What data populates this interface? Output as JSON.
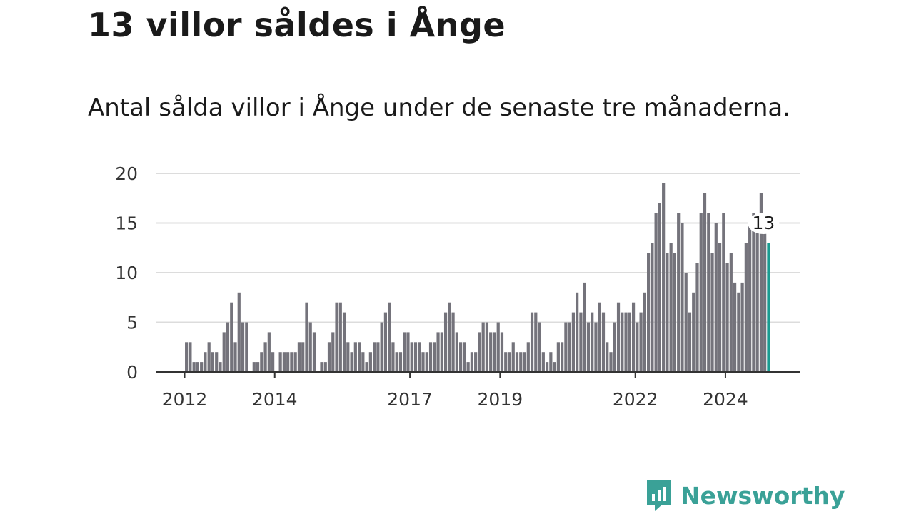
{
  "header": {
    "title": "13 villor såldes i Ånge",
    "subtitle": "Antal sålda villor i Ånge under de senaste tre månaderna."
  },
  "brand": {
    "name": "Newsworthy",
    "color": "#3aa197",
    "icon": "newsworthy-logo-icon"
  },
  "colors": {
    "bar": "#74737b",
    "highlight": "#1a9c91",
    "grid": "#dcdcdc",
    "axis": "#333333"
  },
  "chart_data": {
    "type": "bar",
    "title": "",
    "xlabel": "",
    "ylabel": "",
    "ylim": [
      0,
      20
    ],
    "yticks": [
      "0",
      "5",
      "10",
      "15",
      "20"
    ],
    "grid": true,
    "x_start": "2012-01",
    "xticks": [
      {
        "label": "2012",
        "month": "2012-01"
      },
      {
        "label": "2014",
        "month": "2014-01"
      },
      {
        "label": "2017",
        "month": "2017-01"
      },
      {
        "label": "2019",
        "month": "2019-01"
      },
      {
        "label": "2022",
        "month": "2022-01"
      },
      {
        "label": "2024",
        "month": "2024-01"
      }
    ],
    "values": [
      3,
      3,
      1,
      1,
      1,
      2,
      3,
      2,
      2,
      1,
      4,
      5,
      7,
      3,
      8,
      5,
      5,
      0,
      1,
      1,
      2,
      3,
      4,
      2,
      0,
      2,
      2,
      2,
      2,
      2,
      3,
      3,
      7,
      5,
      4,
      0,
      1,
      1,
      3,
      4,
      7,
      7,
      6,
      3,
      2,
      3,
      3,
      2,
      1,
      2,
      3,
      3,
      5,
      6,
      7,
      3,
      2,
      2,
      4,
      4,
      3,
      3,
      3,
      2,
      2,
      3,
      3,
      4,
      4,
      6,
      7,
      6,
      4,
      3,
      3,
      1,
      2,
      2,
      4,
      5,
      5,
      4,
      4,
      5,
      4,
      2,
      2,
      3,
      2,
      2,
      2,
      3,
      6,
      6,
      5,
      2,
      1,
      2,
      1,
      3,
      3,
      5,
      5,
      6,
      8,
      6,
      9,
      5,
      6,
      5,
      7,
      6,
      3,
      2,
      5,
      7,
      6,
      6,
      6,
      7,
      5,
      6,
      8,
      12,
      13,
      16,
      17,
      19,
      12,
      13,
      12,
      16,
      15,
      10,
      6,
      8,
      11,
      16,
      18,
      16,
      12,
      15,
      13,
      16,
      11,
      12,
      9,
      8,
      9,
      13,
      15,
      16,
      15,
      18,
      14,
      13
    ],
    "highlight": {
      "index": 155,
      "value": 13,
      "label": "13"
    }
  }
}
